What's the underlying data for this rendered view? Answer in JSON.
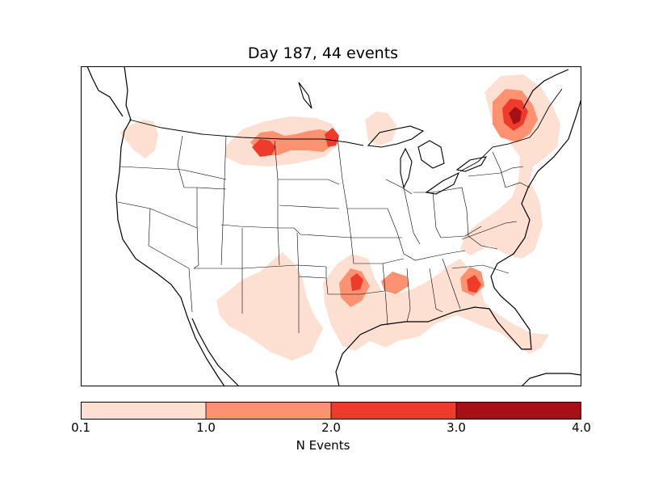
{
  "title": "Day 187, 44 events",
  "colorbar": {
    "label": "N Events",
    "ticks": [
      "0.1",
      "1.0",
      "2.0",
      "3.0",
      "4.0"
    ],
    "levels": [
      0.1,
      1.0,
      2.0,
      3.0,
      4.0
    ],
    "colors": [
      "#fee0d2",
      "#fc9272",
      "#ef3b2c",
      "#a50f15"
    ]
  },
  "map": {
    "projection": "Lambert Conformal",
    "region": "Continental United States",
    "boundaries": [
      "coastlines",
      "country borders",
      "state borders"
    ],
    "hotspots": [
      {
        "region": "Montana-North Dakota border",
        "peak_level": 3
      },
      {
        "region": "North Dakota-Minnesota",
        "peak_level": 3
      },
      {
        "region": "Northern New England / Quebec",
        "peak_level": 4
      },
      {
        "region": "Oklahoma",
        "peak_level": 3
      },
      {
        "region": "Arkansas-Mississippi",
        "peak_level": 2
      },
      {
        "region": "Georgia",
        "peak_level": 3
      },
      {
        "region": "Eastern Seaboard",
        "peak_level": 1
      },
      {
        "region": "New Mexico",
        "peak_level": 1
      },
      {
        "region": "Florida",
        "peak_level": 1
      },
      {
        "region": "Pacific Northwest",
        "peak_level": 1
      }
    ]
  }
}
